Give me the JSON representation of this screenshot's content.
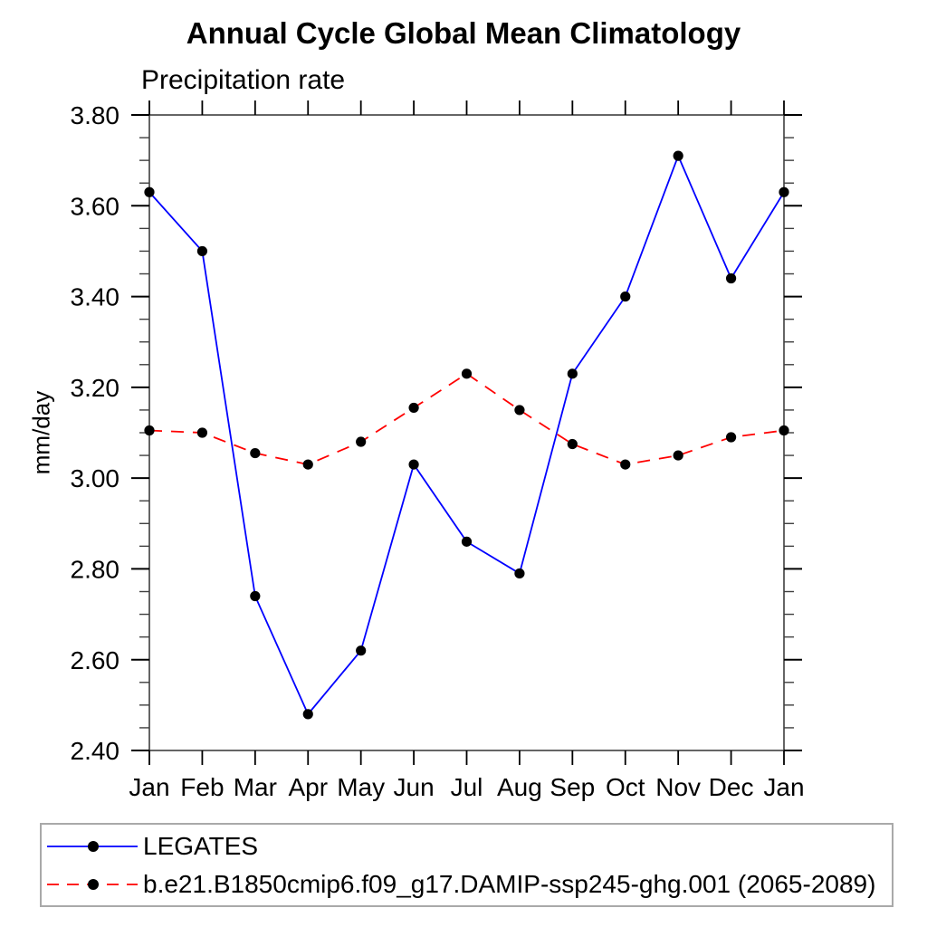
{
  "chart_data": {
    "type": "line",
    "title": "Annual Cycle Global Mean Climatology",
    "subtitle": "Precipitation rate",
    "xlabel": "",
    "ylabel": "mm/day",
    "categories": [
      "Jan",
      "Feb",
      "Mar",
      "Apr",
      "May",
      "Jun",
      "Jul",
      "Aug",
      "Sep",
      "Oct",
      "Nov",
      "Dec",
      "Jan"
    ],
    "ylim": [
      2.4,
      3.8
    ],
    "ytick_labels": [
      "2.40",
      "2.60",
      "2.80",
      "3.00",
      "3.20",
      "3.40",
      "3.60",
      "3.80"
    ],
    "ytick_minor_step": 0.05,
    "grid": false,
    "legend_position": "bottom-left",
    "axis_color": "#3f3f3f",
    "tick_color": "#000000",
    "series": [
      {
        "name": "LEGATES",
        "color": "#0000ff",
        "line_style": "solid",
        "marker": "filled-circle",
        "marker_color": "#000000",
        "values": [
          3.63,
          3.5,
          2.74,
          2.48,
          2.62,
          3.03,
          2.86,
          2.79,
          3.23,
          3.4,
          3.71,
          3.44,
          3.63
        ]
      },
      {
        "name": "b.e21.B1850cmip6.f09_g17.DAMIP-ssp245-ghg.001 (2065-2089)",
        "color": "#ff0000",
        "line_style": "dashed",
        "marker": "filled-circle",
        "marker_color": "#000000",
        "values": [
          3.105,
          3.1,
          3.055,
          3.03,
          3.08,
          3.155,
          3.23,
          3.15,
          3.075,
          3.03,
          3.05,
          3.09,
          3.105
        ]
      }
    ]
  }
}
